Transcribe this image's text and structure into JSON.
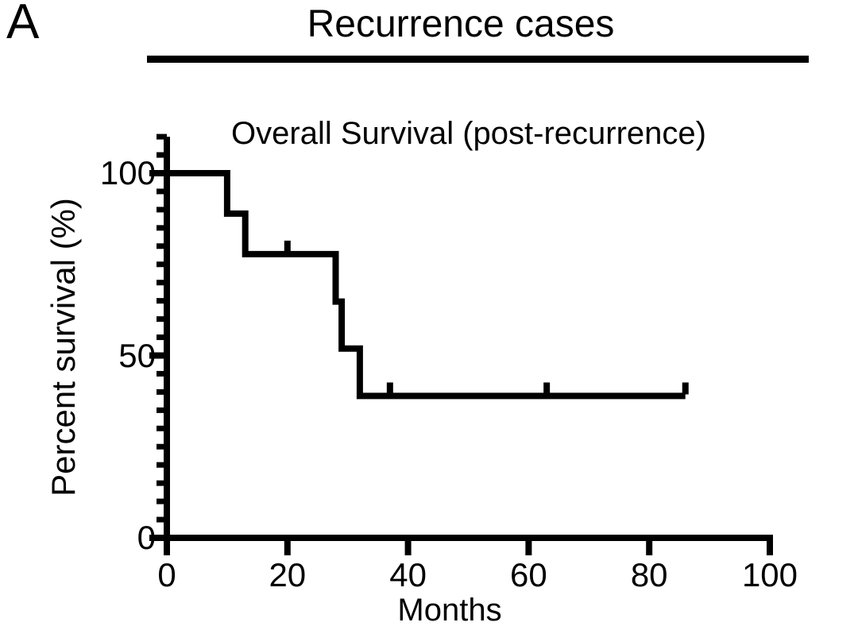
{
  "panel_label": "A",
  "title": "Recurrence cases",
  "colors": {
    "line_color": "#000000",
    "background": "#ffffff",
    "text_color": "#000000"
  },
  "chart_data": {
    "type": "line",
    "subtype": "kaplan-meier-step",
    "title": "Overall Survival (post-recurrence)",
    "xlabel": "Months",
    "ylabel": "Percent survival (%)",
    "xlim": [
      0,
      100
    ],
    "ylim": [
      0,
      110
    ],
    "x_ticks": [
      0,
      20,
      40,
      60,
      80,
      100
    ],
    "y_ticks_major": [
      0,
      50,
      100
    ],
    "y_minor_tick_step": 5,
    "grid": false,
    "legend": "none",
    "series": [
      {
        "name": "Overall survival (post-recurrence)",
        "step_points": [
          [
            0,
            100
          ],
          [
            10,
            100
          ],
          [
            10,
            88.9
          ],
          [
            13,
            88.9
          ],
          [
            13,
            77.8
          ],
          [
            28,
            77.8
          ],
          [
            28,
            64.8
          ],
          [
            29,
            64.8
          ],
          [
            29,
            51.9
          ],
          [
            32,
            51.9
          ],
          [
            32,
            38.9
          ],
          [
            86,
            38.9
          ]
        ],
        "event_months": [
          10,
          13,
          28,
          29,
          32
        ],
        "censor_marks": [
          [
            20,
            77.8
          ],
          [
            37,
            38.9
          ],
          [
            63,
            38.9
          ],
          [
            86,
            38.9
          ]
        ]
      }
    ]
  }
}
